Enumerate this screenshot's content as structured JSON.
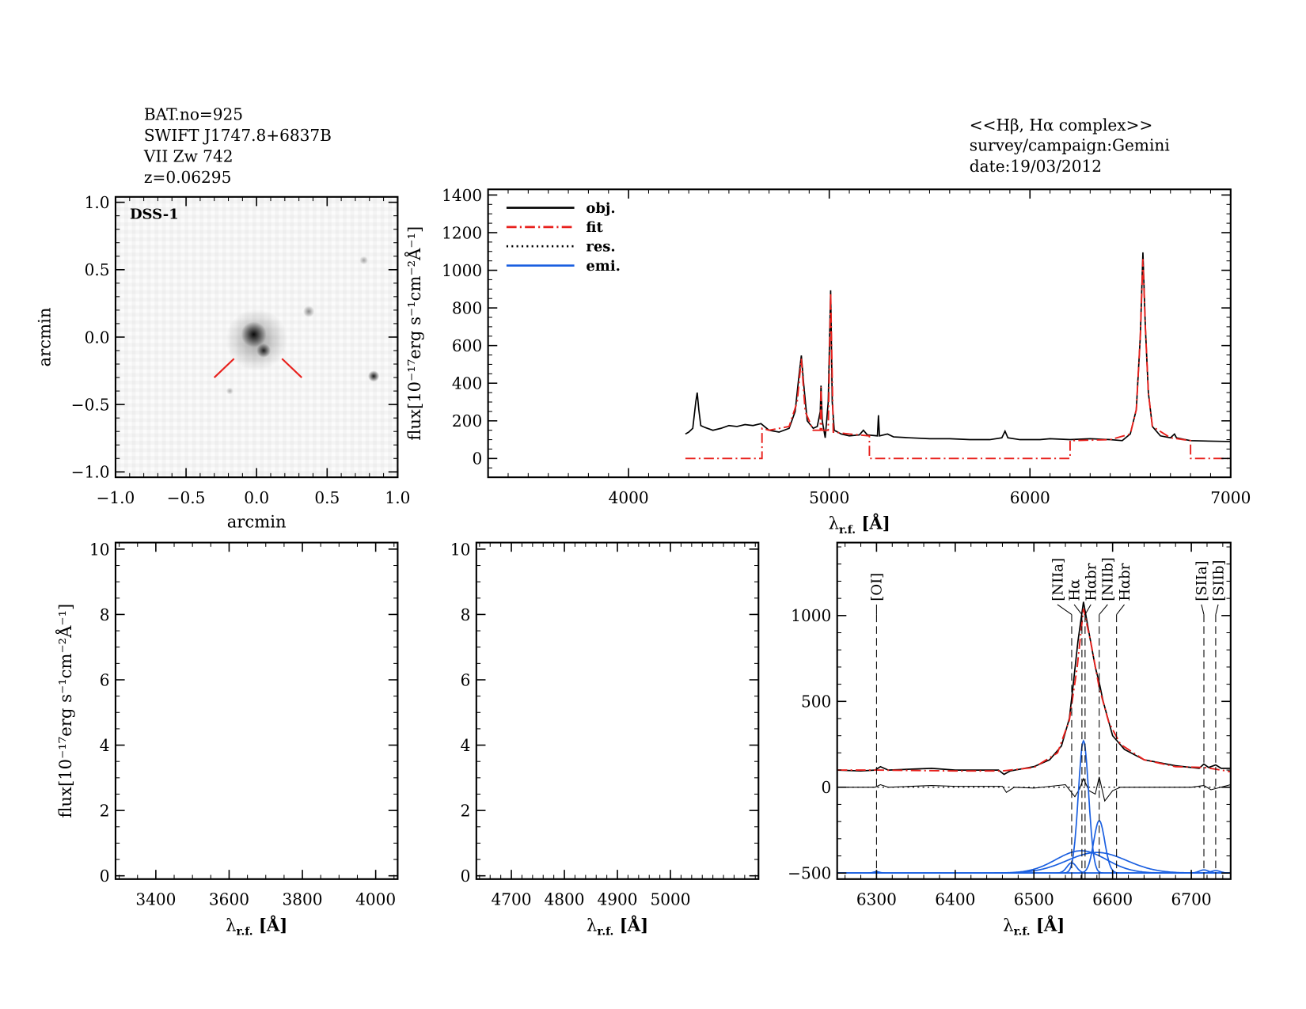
{
  "header_left": [
    "BAT.no=925",
    "SWIFT J1747.8+6837B",
    "VII Zw 742",
    "z=0.06295"
  ],
  "header_right": [
    "<<Hβ, Hα complex>>",
    "survey/campaign:Gemini",
    "date:19/03/2012"
  ],
  "colors": {
    "obj": "#000000",
    "fit": "#e8201c",
    "res": "#000000",
    "emi": "#1a5fe0",
    "marker": "#e8201c"
  },
  "chart_data": [
    {
      "id": "image",
      "type": "image",
      "label": "DSS-1",
      "xlabel": "arcmin",
      "ylabel": "arcmin",
      "xlim": [
        -1.0,
        1.0
      ],
      "ylim": [
        -1.04,
        1.04
      ],
      "xticks": [
        "-1.0",
        "-0.5",
        "0.0",
        "0.5",
        "1.0"
      ],
      "yticks": [
        "-1.0",
        "-0.5",
        "0.0",
        "0.5",
        "1.0"
      ],
      "sources": [
        {
          "x": -0.02,
          "y": 0.02,
          "peak": 0.95,
          "size": 0.09
        },
        {
          "x": 0.05,
          "y": -0.1,
          "peak": 0.85,
          "size": 0.05
        },
        {
          "x": 0.0,
          "y": -0.02,
          "peak": 0.35,
          "size": 0.22
        },
        {
          "x": 0.83,
          "y": -0.29,
          "peak": 0.9,
          "size": 0.04
        },
        {
          "x": 0.37,
          "y": 0.19,
          "peak": 0.45,
          "size": 0.04
        },
        {
          "x": 0.76,
          "y": 0.57,
          "peak": 0.35,
          "size": 0.03
        },
        {
          "x": -0.19,
          "y": -0.4,
          "peak": 0.3,
          "size": 0.025
        }
      ]
    },
    {
      "id": "full",
      "type": "line",
      "xlabel": "λ",
      "xlabel_sub": "r.f.",
      "xlabel_unit": " [Å]",
      "ylabel": "flux[10⁻¹⁷erg s⁻¹cm⁻²Å⁻¹]",
      "xlim": [
        3300,
        7000
      ],
      "ylim": [
        -100,
        1430
      ],
      "xticks": [
        4000,
        5000,
        6000,
        7000
      ],
      "yticks": [
        0,
        200,
        400,
        600,
        800,
        1000,
        1200,
        1400
      ],
      "legend": {
        "position": "top-left",
        "entries": [
          {
            "name": "obj.",
            "style": "solid",
            "color": "#000000"
          },
          {
            "name": "fit",
            "style": "dashdot",
            "color": "#e8201c"
          },
          {
            "name": "res.",
            "style": "dotted",
            "color": "#000000"
          },
          {
            "name": "emi.",
            "style": "solid",
            "color": "#1a5fe0"
          }
        ]
      },
      "series": [
        {
          "name": "obj.",
          "points": [
            [
              4283,
              130
            ],
            [
              4300,
              140
            ],
            [
              4320,
              160
            ],
            [
              4335,
              300
            ],
            [
              4342,
              350
            ],
            [
              4350,
              260
            ],
            [
              4360,
              175
            ],
            [
              4380,
              165
            ],
            [
              4420,
              150
            ],
            [
              4460,
              160
            ],
            [
              4500,
              175
            ],
            [
              4540,
              170
            ],
            [
              4580,
              180
            ],
            [
              4620,
              175
            ],
            [
              4660,
              185
            ],
            [
              4700,
              150
            ],
            [
              4750,
              140
            ],
            [
              4800,
              160
            ],
            [
              4830,
              250
            ],
            [
              4850,
              450
            ],
            [
              4861,
              547
            ],
            [
              4872,
              400
            ],
            [
              4890,
              200
            ],
            [
              4920,
              160
            ],
            [
              4940,
              170
            ],
            [
              4955,
              250
            ],
            [
              4959,
              387
            ],
            [
              4965,
              200
            ],
            [
              4980,
              110
            ],
            [
              4995,
              300
            ],
            [
              5007,
              893
            ],
            [
              5015,
              300
            ],
            [
              5025,
              150
            ],
            [
              5060,
              130
            ],
            [
              5100,
              120
            ],
            [
              5150,
              125
            ],
            [
              5170,
              150
            ],
            [
              5190,
              125
            ],
            [
              5240,
              120
            ],
            [
              5245,
              230
            ],
            [
              5250,
              120
            ],
            [
              5290,
              130
            ],
            [
              5320,
              115
            ],
            [
              5400,
              110
            ],
            [
              5500,
              105
            ],
            [
              5600,
              105
            ],
            [
              5700,
              100
            ],
            [
              5800,
              100
            ],
            [
              5860,
              110
            ],
            [
              5876,
              145
            ],
            [
              5890,
              110
            ],
            [
              5950,
              100
            ],
            [
              6050,
              100
            ],
            [
              6100,
              105
            ],
            [
              6200,
              100
            ],
            [
              6300,
              105
            ],
            [
              6400,
              100
            ],
            [
              6460,
              95
            ],
            [
              6500,
              130
            ],
            [
              6530,
              260
            ],
            [
              6550,
              650
            ],
            [
              6563,
              1095
            ],
            [
              6575,
              700
            ],
            [
              6590,
              350
            ],
            [
              6610,
              170
            ],
            [
              6650,
              120
            ],
            [
              6700,
              110
            ],
            [
              6720,
              130
            ],
            [
              6730,
              110
            ],
            [
              6800,
              95
            ],
            [
              6900,
              92
            ],
            [
              7000,
              90
            ]
          ]
        },
        {
          "name": "fit",
          "points": [
            [
              4283,
              0
            ],
            [
              4665,
              0
            ],
            [
              4665,
              160
            ],
            [
              4700,
              150
            ],
            [
              4800,
              170
            ],
            [
              4840,
              300
            ],
            [
              4861,
              530
            ],
            [
              4880,
              250
            ],
            [
              4920,
              150
            ],
            [
              4955,
              150
            ],
            [
              4959,
              380
            ],
            [
              4963,
              150
            ],
            [
              4995,
              150
            ],
            [
              5007,
              880
            ],
            [
              5020,
              140
            ],
            [
              5100,
              130
            ],
            [
              5200,
              120
            ],
            [
              5200,
              0
            ],
            [
              6200,
              0
            ],
            [
              6200,
              95
            ],
            [
              6400,
              100
            ],
            [
              6500,
              130
            ],
            [
              6530,
              260
            ],
            [
              6550,
              650
            ],
            [
              6563,
              1060
            ],
            [
              6575,
              700
            ],
            [
              6590,
              350
            ],
            [
              6610,
              170
            ],
            [
              6700,
              110
            ],
            [
              6800,
              95
            ],
            [
              6800,
              0
            ],
            [
              7000,
              0
            ]
          ]
        }
      ]
    },
    {
      "id": "blue",
      "type": "line",
      "xlabel": "λ",
      "xlabel_sub": "r.f.",
      "xlabel_unit": " [Å]",
      "ylabel": "flux[10⁻¹⁷erg s⁻¹cm⁻²Å⁻¹]",
      "xlim": [
        3290,
        4060
      ],
      "ylim": [
        -0.1,
        10.2
      ],
      "xticks": [
        3400,
        3600,
        3800,
        4000
      ],
      "yticks": [
        0,
        2,
        4,
        6,
        8,
        10
      ],
      "series": []
    },
    {
      "id": "hbeta",
      "type": "line",
      "xlabel": "λ",
      "xlabel_sub": "r.f.",
      "xlabel_unit": " [Å]",
      "xlim": [
        4634,
        5166
      ],
      "ylim": [
        -0.1,
        10.2
      ],
      "xticks": [
        4700,
        4800,
        4900,
        5000
      ],
      "yticks": [
        0,
        2,
        4,
        6,
        8,
        10
      ],
      "series": []
    },
    {
      "id": "halpha",
      "type": "line",
      "xlabel": "λ",
      "xlabel_sub": "r.f.",
      "xlabel_unit": " [Å]",
      "xlim": [
        6250,
        6750
      ],
      "ylim": [
        -535,
        1425
      ],
      "xticks": [
        6300,
        6400,
        6500,
        6600,
        6700
      ],
      "yticks": [
        -500,
        0,
        500,
        1000
      ],
      "line_markers": [
        {
          "label": "[OI]",
          "wavelength": 6300
        },
        {
          "label": "[NIIa]",
          "wavelength": 6548
        },
        {
          "label": "Hα",
          "wavelength": 6561
        },
        {
          "label": "Hαbr",
          "wavelength": 6565
        },
        {
          "label": "[NIIb]",
          "wavelength": 6583
        },
        {
          "label": "Hαbr",
          "wavelength": 6605
        },
        {
          "label": "[SIIa]",
          "wavelength": 6716
        },
        {
          "label": "[SIIb]",
          "wavelength": 6731
        }
      ],
      "series": [
        {
          "name": "obj.",
          "points": [
            [
              6250,
              100
            ],
            [
              6280,
              95
            ],
            [
              6298,
              100
            ],
            [
              6305,
              120
            ],
            [
              6315,
              100
            ],
            [
              6370,
              110
            ],
            [
              6400,
              100
            ],
            [
              6455,
              100
            ],
            [
              6462,
              75
            ],
            [
              6470,
              95
            ],
            [
              6500,
              120
            ],
            [
              6520,
              160
            ],
            [
              6535,
              240
            ],
            [
              6545,
              400
            ],
            [
              6550,
              600
            ],
            [
              6556,
              850
            ],
            [
              6563,
              1080
            ],
            [
              6570,
              900
            ],
            [
              6578,
              700
            ],
            [
              6583,
              610
            ],
            [
              6588,
              500
            ],
            [
              6600,
              300
            ],
            [
              6615,
              220
            ],
            [
              6640,
              160
            ],
            [
              6680,
              125
            ],
            [
              6710,
              110
            ],
            [
              6716,
              135
            ],
            [
              6722,
              115
            ],
            [
              6731,
              130
            ],
            [
              6738,
              110
            ],
            [
              6750,
              110
            ]
          ]
        },
        {
          "name": "fit",
          "points": [
            [
              6250,
              100
            ],
            [
              6300,
              100
            ],
            [
              6400,
              95
            ],
            [
              6460,
              95
            ],
            [
              6500,
              115
            ],
            [
              6530,
              200
            ],
            [
              6545,
              390
            ],
            [
              6555,
              700
            ],
            [
              6563,
              1040
            ],
            [
              6572,
              850
            ],
            [
              6583,
              580
            ],
            [
              6595,
              380
            ],
            [
              6610,
              250
            ],
            [
              6640,
              160
            ],
            [
              6680,
              120
            ],
            [
              6716,
              115
            ],
            [
              6731,
              105
            ],
            [
              6750,
              90
            ]
          ]
        },
        {
          "name": "res.",
          "points": [
            [
              6250,
              0
            ],
            [
              6298,
              0
            ],
            [
              6305,
              15
            ],
            [
              6315,
              0
            ],
            [
              6370,
              10
            ],
            [
              6400,
              5
            ],
            [
              6460,
              5
            ],
            [
              6465,
              -30
            ],
            [
              6475,
              0
            ],
            [
              6500,
              -5
            ],
            [
              6540,
              15
            ],
            [
              6552,
              -55
            ],
            [
              6558,
              -10
            ],
            [
              6563,
              50
            ],
            [
              6570,
              -20
            ],
            [
              6578,
              -40
            ],
            [
              6583,
              60
            ],
            [
              6590,
              -80
            ],
            [
              6600,
              -20
            ],
            [
              6610,
              0
            ],
            [
              6700,
              0
            ],
            [
              6716,
              10
            ],
            [
              6725,
              -15
            ],
            [
              6750,
              15
            ]
          ]
        },
        {
          "name": "emi.",
          "offset": -500,
          "components": [
            {
              "center": 6300,
              "amplitude": 8,
              "sigma": 4
            },
            {
              "center": 6548,
              "amplitude": 60,
              "sigma": 6
            },
            {
              "center": 6563,
              "amplitude": 770,
              "sigma": 6.5
            },
            {
              "center": 6583,
              "amplitude": 305,
              "sigma": 7
            },
            {
              "center": 6560,
              "amplitude": 130,
              "sigma": 32
            },
            {
              "center": 6580,
              "amplitude": 120,
              "sigma": 38
            },
            {
              "center": 6716,
              "amplitude": 18,
              "sigma": 6
            },
            {
              "center": 6731,
              "amplitude": 14,
              "sigma": 6
            }
          ]
        }
      ]
    }
  ]
}
